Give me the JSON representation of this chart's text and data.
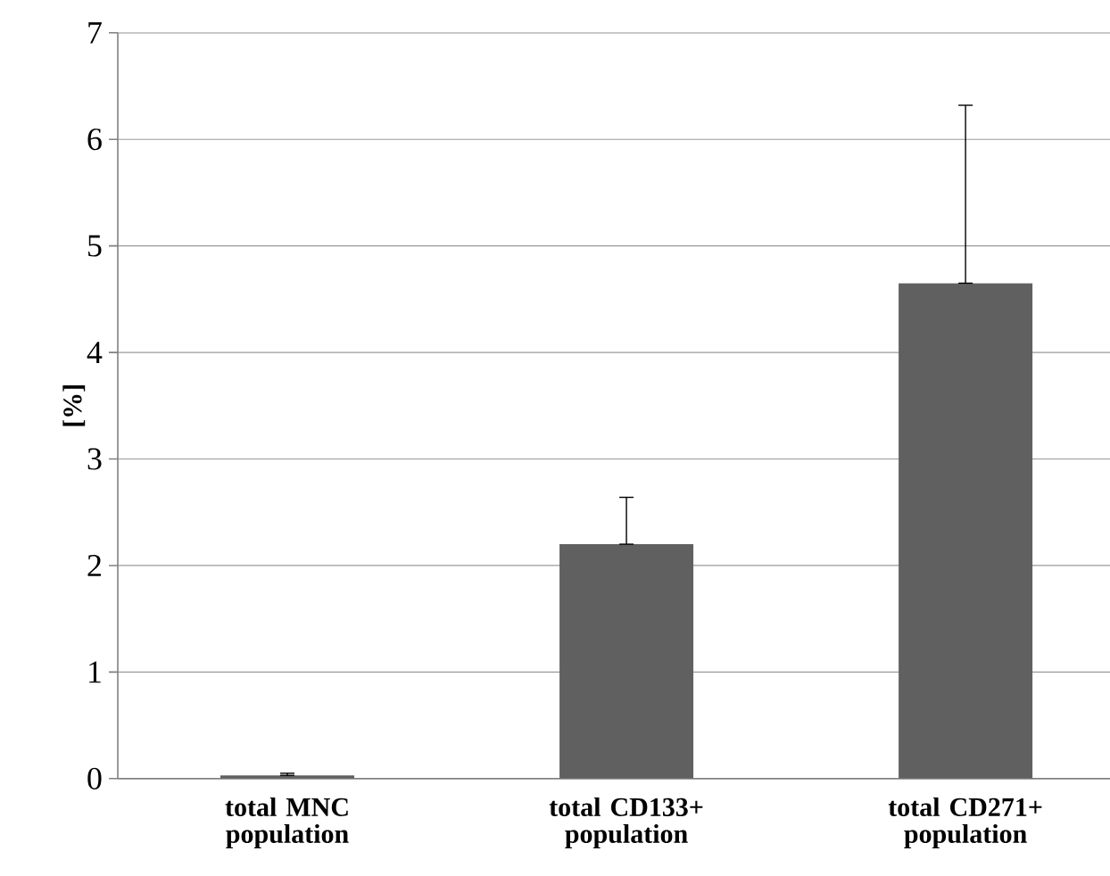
{
  "chart_data": {
    "type": "bar",
    "ylabel": "[%]",
    "categories": [
      "total MNC population",
      "total CD133+ population",
      "total CD271+ population"
    ],
    "values": [
      0.03,
      2.2,
      4.65
    ],
    "errors": [
      [
        0.03,
        0.05
      ],
      [
        2.2,
        2.64
      ],
      [
        4.65,
        6.32
      ]
    ],
    "color": "#606060",
    "ylim": [
      0,
      7
    ],
    "yticks": [
      0,
      1,
      2,
      3,
      4,
      5,
      6,
      7
    ],
    "grid": "y"
  }
}
